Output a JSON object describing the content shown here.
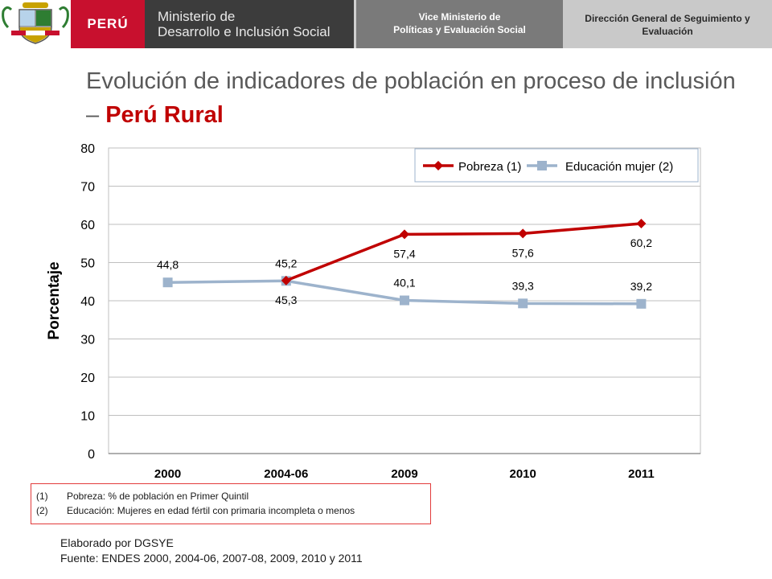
{
  "header": {
    "country": "PERÚ",
    "ministry_line1": "Ministerio de",
    "ministry_line2": "Desarrollo e Inclusión Social",
    "vice_line1": "Vice Ministerio de",
    "vice_line2": "Políticas y Evaluación Social",
    "dg_line1": "Dirección General de Seguimiento y",
    "dg_line2": "Evaluación"
  },
  "title": {
    "main": "Evolución de indicadores de población en proceso de inclusión – ",
    "highlight": "Perú Rural"
  },
  "chart_data": {
    "type": "line",
    "categories": [
      "2000",
      "2004-06",
      "2009",
      "2010",
      "2011"
    ],
    "ylabel": "Porcentaje",
    "ylim": [
      0,
      80
    ],
    "yticks": [
      0,
      10,
      20,
      30,
      40,
      50,
      60,
      70,
      80
    ],
    "grid": true,
    "legend_position": "top-right",
    "series": [
      {
        "name": "Pobreza (1)",
        "color": "#c00000",
        "marker": "diamond",
        "values": [
          null,
          45.3,
          57.4,
          57.6,
          60.2
        ],
        "labels": [
          "",
          "45,3",
          "57,4",
          "57,6",
          "60,2"
        ]
      },
      {
        "name": "Educación mujer (2)",
        "color": "#9db3cc",
        "marker": "square",
        "values": [
          44.8,
          45.2,
          40.1,
          39.3,
          39.2
        ],
        "labels": [
          "44,8",
          "45,2",
          "40,1",
          "39,3",
          "39,2"
        ]
      }
    ]
  },
  "notes": [
    {
      "num": "(1)",
      "text": "Pobreza: % de población en Primer Quintil"
    },
    {
      "num": "(2)",
      "text": "Educación: Mujeres en edad fértil  con primaria incompleta o menos"
    }
  ],
  "credits": {
    "line1": "Elaborado por DGSYE",
    "line2": "Fuente: ENDES 2000, 2004-06, 2007-08, 2009, 2010 y 2011"
  }
}
